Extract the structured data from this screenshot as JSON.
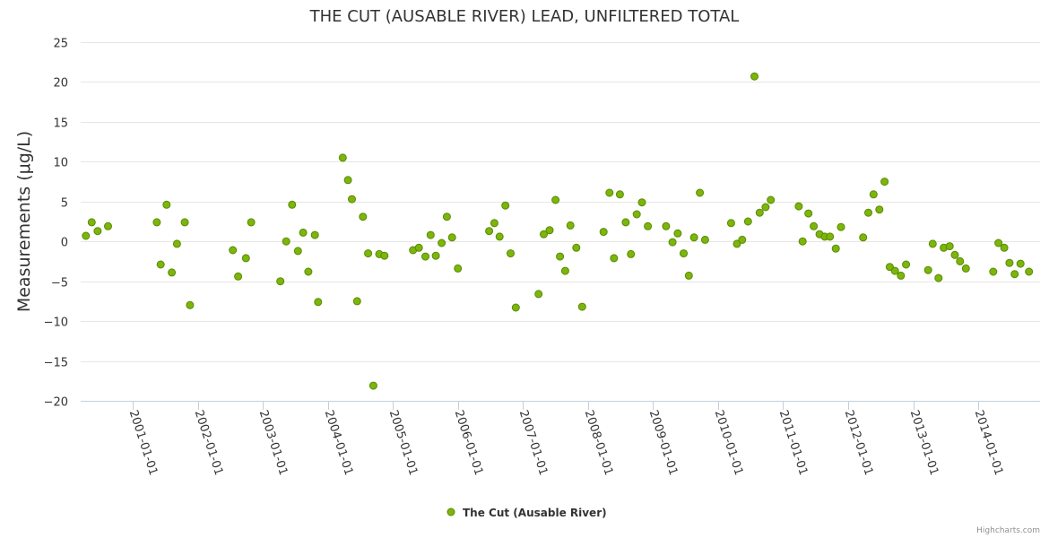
{
  "chart_data": {
    "type": "scatter",
    "title": "THE CUT (AUSABLE RIVER) LEAD, UNFILTERED TOTAL",
    "ylabel": "Measurements (μg/L)",
    "xlabel": "",
    "ylim": [
      -20,
      25
    ],
    "yticks": [
      25,
      20,
      15,
      10,
      5,
      0,
      -5,
      -10,
      -15,
      -20
    ],
    "x_range_years": [
      2000.2,
      2014.95
    ],
    "x_ticks": [
      {
        "label": "2001-01-01",
        "year": 2001
      },
      {
        "label": "2002-01-01",
        "year": 2002
      },
      {
        "label": "2003-01-01",
        "year": 2003
      },
      {
        "label": "2004-01-01",
        "year": 2004
      },
      {
        "label": "2005-01-01",
        "year": 2005
      },
      {
        "label": "2006-01-01",
        "year": 2006
      },
      {
        "label": "2007-01-01",
        "year": 2007
      },
      {
        "label": "2008-01-01",
        "year": 2008
      },
      {
        "label": "2009-01-01",
        "year": 2009
      },
      {
        "label": "2010-01-01",
        "year": 2010
      },
      {
        "label": "2011-01-01",
        "year": 2011
      },
      {
        "label": "2012-01-01",
        "year": 2012
      },
      {
        "label": "2013-01-01",
        "year": 2013
      },
      {
        "label": "2014-01-01",
        "year": 2014
      }
    ],
    "color": "#7cb50c",
    "series": [
      {
        "name": "The Cut (Ausable River)",
        "points": [
          [
            2000.28,
            0.7
          ],
          [
            2000.37,
            2.4
          ],
          [
            2000.46,
            1.3
          ],
          [
            2000.62,
            1.9
          ],
          [
            2001.37,
            2.4
          ],
          [
            2001.43,
            -2.9
          ],
          [
            2001.52,
            4.6
          ],
          [
            2001.6,
            -3.9
          ],
          [
            2001.68,
            -0.3
          ],
          [
            2001.8,
            2.4
          ],
          [
            2001.88,
            -8.0
          ],
          [
            2002.54,
            -1.1
          ],
          [
            2002.62,
            -4.4
          ],
          [
            2002.74,
            -2.1
          ],
          [
            2002.82,
            2.4
          ],
          [
            2003.27,
            -5.0
          ],
          [
            2003.36,
            0.0
          ],
          [
            2003.45,
            4.6
          ],
          [
            2003.54,
            -1.2
          ],
          [
            2003.62,
            1.1
          ],
          [
            2003.7,
            -3.8
          ],
          [
            2003.8,
            0.8
          ],
          [
            2003.85,
            -7.6
          ],
          [
            2004.23,
            10.5
          ],
          [
            2004.31,
            7.7
          ],
          [
            2004.37,
            5.3
          ],
          [
            2004.45,
            -7.5
          ],
          [
            2004.54,
            3.1
          ],
          [
            2004.62,
            -1.5
          ],
          [
            2004.7,
            -18.1
          ],
          [
            2004.79,
            -1.6
          ],
          [
            2004.87,
            -1.8
          ],
          [
            2005.31,
            -1.1
          ],
          [
            2005.4,
            -0.8
          ],
          [
            2005.5,
            -1.9
          ],
          [
            2005.58,
            0.8
          ],
          [
            2005.66,
            -1.8
          ],
          [
            2005.75,
            -0.2
          ],
          [
            2005.83,
            3.1
          ],
          [
            2005.91,
            0.5
          ],
          [
            2006.0,
            -3.4
          ],
          [
            2006.48,
            1.3
          ],
          [
            2006.56,
            2.3
          ],
          [
            2006.64,
            0.6
          ],
          [
            2006.73,
            4.5
          ],
          [
            2006.81,
            -1.5
          ],
          [
            2006.89,
            -8.3
          ],
          [
            2007.24,
            -6.6
          ],
          [
            2007.32,
            0.9
          ],
          [
            2007.41,
            1.4
          ],
          [
            2007.5,
            5.2
          ],
          [
            2007.57,
            -1.9
          ],
          [
            2007.65,
            -3.7
          ],
          [
            2007.73,
            2.0
          ],
          [
            2007.82,
            -0.8
          ],
          [
            2007.91,
            -8.2
          ],
          [
            2008.24,
            1.2
          ],
          [
            2008.33,
            6.1
          ],
          [
            2008.4,
            -2.1
          ],
          [
            2008.49,
            5.9
          ],
          [
            2008.58,
            2.4
          ],
          [
            2008.66,
            -1.6
          ],
          [
            2008.75,
            3.4
          ],
          [
            2008.83,
            4.9
          ],
          [
            2008.92,
            1.9
          ],
          [
            2009.2,
            1.9
          ],
          [
            2009.3,
            -0.1
          ],
          [
            2009.38,
            1.0
          ],
          [
            2009.47,
            -1.5
          ],
          [
            2009.55,
            -4.3
          ],
          [
            2009.63,
            0.5
          ],
          [
            2009.72,
            6.1
          ],
          [
            2009.8,
            0.2
          ],
          [
            2010.2,
            2.3
          ],
          [
            2010.29,
            -0.3
          ],
          [
            2010.37,
            0.2
          ],
          [
            2010.46,
            2.5
          ],
          [
            2010.56,
            20.7
          ],
          [
            2010.64,
            3.6
          ],
          [
            2010.73,
            4.3
          ],
          [
            2010.81,
            5.2
          ],
          [
            2011.24,
            4.4
          ],
          [
            2011.3,
            0.0
          ],
          [
            2011.39,
            3.5
          ],
          [
            2011.47,
            1.9
          ],
          [
            2011.56,
            0.9
          ],
          [
            2011.64,
            0.6
          ],
          [
            2011.72,
            0.6
          ],
          [
            2011.81,
            -0.9
          ],
          [
            2011.89,
            1.8
          ],
          [
            2012.23,
            0.5
          ],
          [
            2012.31,
            3.6
          ],
          [
            2012.39,
            5.9
          ],
          [
            2012.48,
            4.0
          ],
          [
            2012.56,
            7.5
          ],
          [
            2012.64,
            -3.2
          ],
          [
            2012.72,
            -3.7
          ],
          [
            2012.81,
            -4.3
          ],
          [
            2012.89,
            -2.9
          ],
          [
            2013.23,
            -3.6
          ],
          [
            2013.3,
            -0.3
          ],
          [
            2013.39,
            -4.6
          ],
          [
            2013.47,
            -0.8
          ],
          [
            2013.56,
            -0.6
          ],
          [
            2013.64,
            -1.7
          ],
          [
            2013.72,
            -2.5
          ],
          [
            2013.81,
            -3.4
          ],
          [
            2014.23,
            -3.8
          ],
          [
            2014.31,
            -0.2
          ],
          [
            2014.4,
            -0.8
          ],
          [
            2014.48,
            -2.7
          ],
          [
            2014.56,
            -4.1
          ],
          [
            2014.65,
            -2.8
          ],
          [
            2014.78,
            -3.8
          ]
        ]
      }
    ]
  },
  "legend": {
    "label": "The Cut (Ausable River)"
  },
  "credits": "Highcharts.com"
}
